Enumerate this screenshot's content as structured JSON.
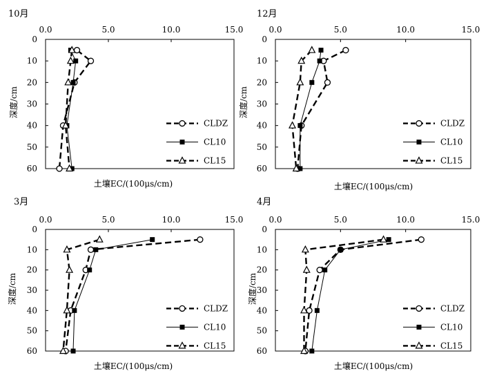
{
  "chart_data": [
    {
      "type": "line",
      "orientation": "horizontal-profile",
      "title": "10月",
      "xlabel": "土壤EC/(100μs/cm)",
      "ylabel": "深度/cm",
      "xlim": [
        0,
        15
      ],
      "ylim": [
        0,
        60
      ],
      "y_inverted": true,
      "xticks": [
        "0.0",
        "5.0",
        "10.0",
        "15.0"
      ],
      "yticks": [
        "0",
        "10",
        "20",
        "30",
        "40",
        "50",
        "60"
      ],
      "legend_position": "bottom-right",
      "depth": [
        5,
        10,
        20,
        40,
        60
      ],
      "series": [
        {
          "name": "CLDZ",
          "values": [
            2.5,
            3.6,
            2.3,
            1.4,
            1.1
          ],
          "marker": "open-circle",
          "line": "dashed-thick"
        },
        {
          "name": "CL10",
          "values": [
            2.0,
            2.4,
            2.2,
            1.7,
            2.1
          ],
          "marker": "filled-square",
          "line": "solid-thin"
        },
        {
          "name": "CL15",
          "values": [
            2.1,
            2.0,
            1.8,
            1.6,
            1.9
          ],
          "marker": "open-triangle",
          "line": "dashed-thick"
        }
      ]
    },
    {
      "type": "line",
      "orientation": "horizontal-profile",
      "title": "12月",
      "xlabel": "土壤EC/(100μs/cm)",
      "ylabel": "深度/cm",
      "xlim": [
        0,
        15
      ],
      "ylim": [
        0,
        60
      ],
      "y_inverted": true,
      "xticks": [
        "0.0",
        "5.0",
        "10.0",
        "15.0"
      ],
      "yticks": [
        "0",
        "10",
        "20",
        "30",
        "40",
        "50",
        "60"
      ],
      "legend_position": "bottom-right",
      "depth": [
        5,
        10,
        20,
        40,
        60
      ],
      "series": [
        {
          "name": "CLDZ",
          "values": [
            5.4,
            3.7,
            4.0,
            2.0,
            1.7
          ],
          "marker": "open-circle",
          "line": "dashed-thick"
        },
        {
          "name": "CL10",
          "values": [
            3.5,
            3.4,
            2.8,
            1.9,
            1.9
          ],
          "marker": "filled-square",
          "line": "solid-thin"
        },
        {
          "name": "CL15",
          "values": [
            2.8,
            2.0,
            1.9,
            1.3,
            1.6
          ],
          "marker": "open-triangle",
          "line": "dashed-thick"
        }
      ]
    },
    {
      "type": "line",
      "orientation": "horizontal-profile",
      "title": "3月",
      "xlabel": "土壤EC/(100μs/cm)",
      "ylabel": "深度/cm",
      "xlim": [
        0,
        15
      ],
      "ylim": [
        0,
        60
      ],
      "y_inverted": true,
      "xticks": [
        "0.0",
        "5.0",
        "10.0",
        "15.0"
      ],
      "yticks": [
        "0",
        "10",
        "20",
        "30",
        "40",
        "50",
        "60"
      ],
      "legend_position": "bottom-right",
      "depth": [
        5,
        10,
        20,
        40,
        60
      ],
      "series": [
        {
          "name": "CLDZ",
          "values": [
            12.3,
            3.6,
            3.2,
            2.0,
            1.6
          ],
          "marker": "open-circle",
          "line": "dashed-thick"
        },
        {
          "name": "CL10",
          "values": [
            8.5,
            4.0,
            3.5,
            2.3,
            2.2
          ],
          "marker": "filled-square",
          "line": "solid-thin"
        },
        {
          "name": "CL15",
          "values": [
            4.3,
            1.7,
            1.9,
            1.7,
            1.4
          ],
          "marker": "open-triangle",
          "line": "dashed-thick"
        }
      ]
    },
    {
      "type": "line",
      "orientation": "horizontal-profile",
      "title": "4月",
      "xlabel": "土壤EC/(100μs/cm)",
      "ylabel": "深度/cm",
      "xlim": [
        0,
        15
      ],
      "ylim": [
        0,
        60
      ],
      "y_inverted": true,
      "xticks": [
        "0.0",
        "5.0",
        "10.0",
        "15.0"
      ],
      "yticks": [
        "0",
        "10",
        "20",
        "30",
        "40",
        "50",
        "60"
      ],
      "legend_position": "bottom-right",
      "depth": [
        5,
        10,
        20,
        40,
        60
      ],
      "series": [
        {
          "name": "CLDZ",
          "values": [
            11.2,
            5.0,
            3.4,
            2.6,
            2.3
          ],
          "marker": "open-circle",
          "line": "dashed-thick"
        },
        {
          "name": "CL10",
          "values": [
            8.7,
            5.0,
            3.8,
            3.2,
            2.8
          ],
          "marker": "filled-square",
          "line": "solid-thin"
        },
        {
          "name": "CL15",
          "values": [
            8.3,
            2.3,
            2.4,
            2.2,
            2.2
          ],
          "marker": "open-triangle",
          "line": "dashed-thick"
        }
      ]
    }
  ]
}
